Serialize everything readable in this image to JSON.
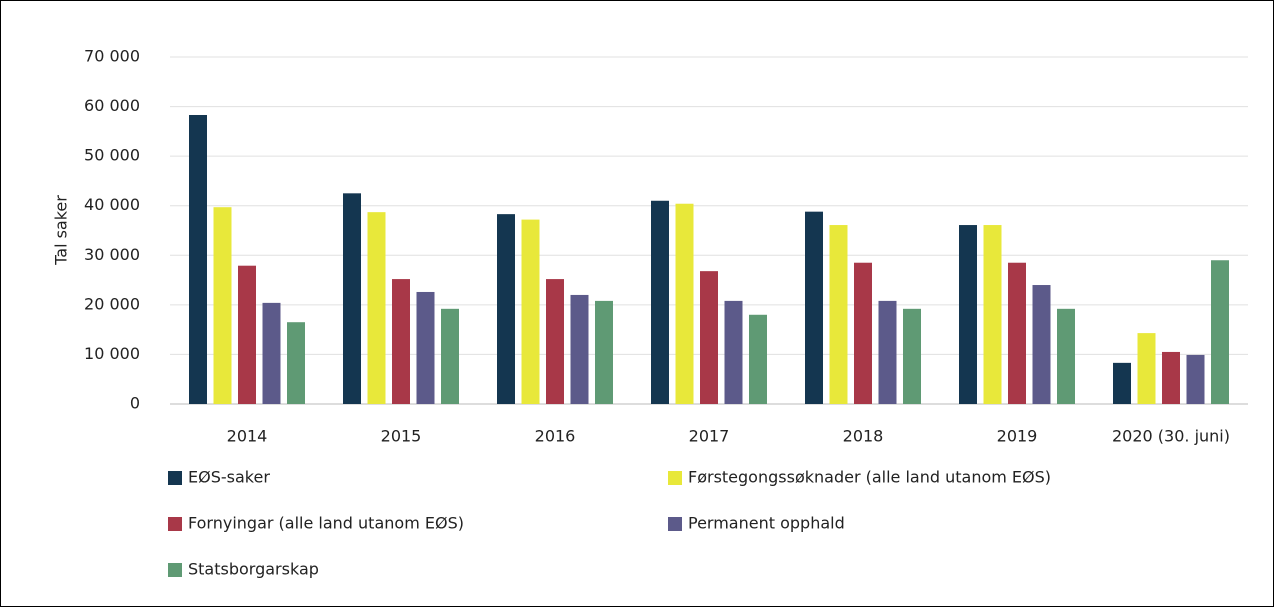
{
  "chart_data": {
    "type": "bar",
    "y_label": "Tal saker",
    "categories": [
      "2014",
      "2015",
      "2016",
      "2017",
      "2018",
      "2019",
      "2020 (30. juni)"
    ],
    "series": [
      {
        "name": "EØS-saker",
        "color": "#143650",
        "values": [
          58300,
          42500,
          38300,
          41000,
          38800,
          36100,
          8300
        ]
      },
      {
        "name": "Førstegongssøknader (alle land utanom EØS)",
        "color": "#e8e83a",
        "values": [
          39700,
          38700,
          37200,
          40400,
          36100,
          36100,
          14300
        ]
      },
      {
        "name": "Fornyingar (alle land utanom EØS)",
        "color": "#a83848",
        "values": [
          27900,
          25200,
          25200,
          26800,
          28500,
          28500,
          10500
        ]
      },
      {
        "name": "Permanent opphald",
        "color": "#5c5a8a",
        "values": [
          20400,
          22600,
          22000,
          20800,
          20800,
          24000,
          9900
        ]
      },
      {
        "name": "Statsborgarskap",
        "color": "#5f9a74",
        "values": [
          16500,
          19200,
          20800,
          18000,
          19200,
          19200,
          29000
        ]
      }
    ],
    "ylim": [
      0,
      70000
    ],
    "yticks": [
      0,
      {
        "value": 10000,
        "label": "10 000"
      },
      {
        "value": 20000,
        "label": "20 000"
      },
      {
        "value": 30000,
        "label": "30 000"
      },
      {
        "value": 40000,
        "label": "40 000"
      },
      {
        "value": 50000,
        "label": "50 000"
      },
      {
        "value": 60000,
        "label": "60 000"
      },
      {
        "value": 70000,
        "label": "70 000"
      }
    ],
    "grid": true
  }
}
